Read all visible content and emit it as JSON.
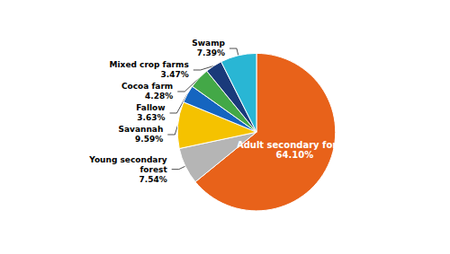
{
  "chart_data": {
    "type": "pie",
    "categories": [
      "Adult secondary forest",
      "Young secondary\nforest",
      "Savannah",
      "Fallow",
      "Cocoa farm",
      "Mixed crop farms",
      "Swamp"
    ],
    "values": [
      64.1,
      7.54,
      9.59,
      3.63,
      4.28,
      3.47,
      7.39
    ],
    "value_labels": [
      "64.10%",
      "7.54%",
      "9.59%",
      "3.63%",
      "4.28%",
      "3.47%",
      "7.39%"
    ],
    "colors": [
      "#E8621A",
      "#B5B5B5",
      "#F5C200",
      "#1565C0",
      "#43A847",
      "#1A3A7A",
      "#29B6D4"
    ],
    "data_labels": true
  }
}
